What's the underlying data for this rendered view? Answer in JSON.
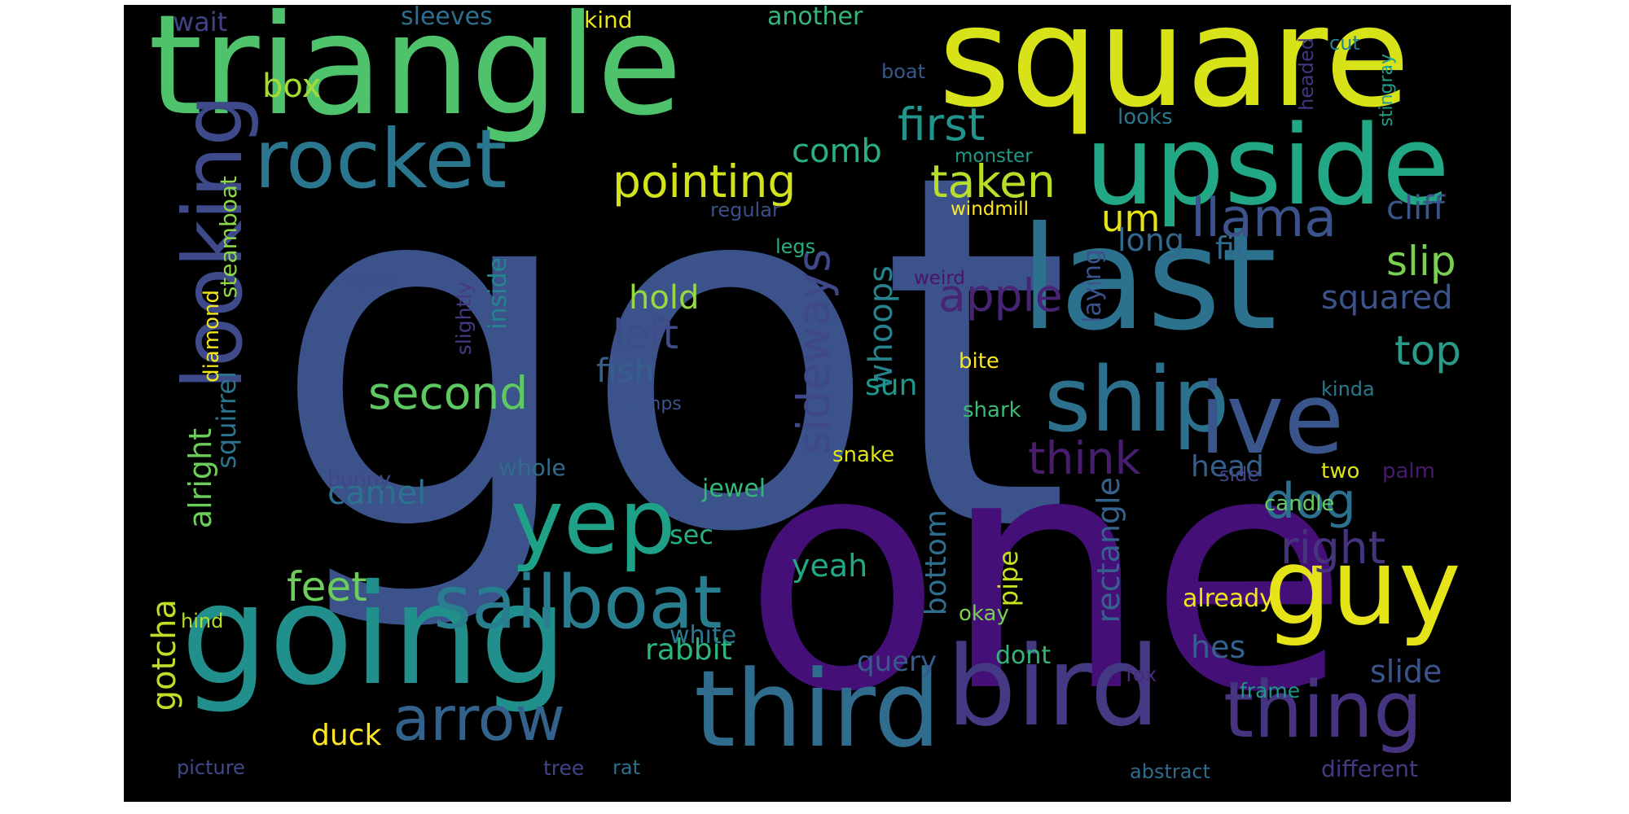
{
  "colors": {
    "background": "#000000",
    "page": "#ffffff",
    "palette": [
      "#440154",
      "#482878",
      "#3e4a89",
      "#31688e",
      "#26828e",
      "#1f9e89",
      "#35b779",
      "#6ece58",
      "#b5de2b",
      "#fde725"
    ]
  },
  "words": [
    {
      "id": "got",
      "text": "got",
      "color": "#3b528b"
    },
    {
      "id": "one",
      "text": "one",
      "color": "#440f76"
    },
    {
      "id": "triangle",
      "text": "triangle",
      "color": "#4ec36b"
    },
    {
      "id": "square",
      "text": "square",
      "color": "#d8e219"
    },
    {
      "id": "last",
      "text": "last",
      "color": "#2c728e"
    },
    {
      "id": "going",
      "text": "going",
      "color": "#21908d"
    },
    {
      "id": "third",
      "text": "third",
      "color": "#2f6c8e"
    },
    {
      "id": "bird",
      "text": "bird",
      "color": "#443a83"
    },
    {
      "id": "upside",
      "text": "upside",
      "color": "#22a884"
    },
    {
      "id": "looking",
      "text": "looking",
      "color": "#3e4a89"
    },
    {
      "id": "rocket",
      "text": "rocket",
      "color": "#2a768e"
    },
    {
      "id": "guy",
      "text": "guy",
      "color": "#e5e419"
    },
    {
      "id": "ship",
      "text": "ship",
      "color": "#2d708e"
    },
    {
      "id": "ive",
      "text": "ive",
      "color": "#3a548c"
    },
    {
      "id": "yep",
      "text": "yep",
      "color": "#1fa187"
    },
    {
      "id": "sailboat",
      "text": "sailboat",
      "color": "#287d8e"
    },
    {
      "id": "thing",
      "text": "thing",
      "color": "#463480"
    },
    {
      "id": "arrow",
      "text": "arrow",
      "color": "#33638d"
    },
    {
      "id": "llama",
      "text": "llama",
      "color": "#3b528b"
    },
    {
      "id": "pointing",
      "text": "pointing",
      "color": "#d2e21b"
    },
    {
      "id": "taken",
      "text": "taken",
      "color": "#b8de29"
    },
    {
      "id": "first",
      "text": "first",
      "color": "#1f958b"
    },
    {
      "id": "apple",
      "text": "apple",
      "color": "#482475"
    },
    {
      "id": "dog",
      "text": "dog",
      "color": "#2d708e"
    },
    {
      "id": "right",
      "text": "right",
      "color": "#46337e"
    },
    {
      "id": "think",
      "text": "think",
      "color": "#481c6e"
    },
    {
      "id": "second",
      "text": "second",
      "color": "#5ec962"
    },
    {
      "id": "feet",
      "text": "feet",
      "color": "#6ccd5a"
    },
    {
      "id": "slip",
      "text": "slip",
      "color": "#7ad151"
    },
    {
      "id": "top",
      "text": "top",
      "color": "#2a9a8a"
    },
    {
      "id": "left",
      "text": "left",
      "color": "#3e4c8a"
    },
    {
      "id": "sideways",
      "text": "sideways",
      "color": "#3f4889"
    },
    {
      "id": "squared",
      "text": "squared",
      "color": "#3b528b"
    },
    {
      "id": "cliff",
      "text": "cliff",
      "color": "#39558c"
    },
    {
      "id": "um",
      "text": "um",
      "color": "#e2e418"
    },
    {
      "id": "box",
      "text": "box",
      "color": "#a5db36"
    },
    {
      "id": "comb",
      "text": "comb",
      "color": "#2ab07f"
    },
    {
      "id": "hold",
      "text": "hold",
      "color": "#95d840"
    },
    {
      "id": "fish",
      "text": "fish",
      "color": "#355f8d"
    },
    {
      "id": "long",
      "text": "long",
      "color": "#31688e"
    },
    {
      "id": "fit",
      "text": "fit",
      "color": "#306a8e"
    },
    {
      "id": "whoops",
      "text": "whoops",
      "color": "#26828e"
    },
    {
      "id": "head",
      "text": "head",
      "color": "#355f8d"
    },
    {
      "id": "camel",
      "text": "camel",
      "color": "#2c728e"
    },
    {
      "id": "gotcha",
      "text": "gotcha",
      "color": "#bddf26"
    },
    {
      "id": "alright",
      "text": "alright",
      "color": "#6ccd5a"
    },
    {
      "id": "rectangle",
      "text": "rectangle",
      "color": "#33638d"
    },
    {
      "id": "bottom",
      "text": "bottom",
      "color": "#2e6e8e"
    },
    {
      "id": "hes",
      "text": "hes",
      "color": "#34618d"
    },
    {
      "id": "slide",
      "text": "slide",
      "color": "#3b528b"
    },
    {
      "id": "rabbit",
      "text": "rabbit",
      "color": "#2fb47c"
    },
    {
      "id": "yeah",
      "text": "yeah",
      "color": "#22a884"
    },
    {
      "id": "sun",
      "text": "sun",
      "color": "#1f988b"
    },
    {
      "id": "query",
      "text": "query",
      "color": "#375b8d"
    },
    {
      "id": "duck",
      "text": "duck",
      "color": "#fde725"
    },
    {
      "id": "squirrel",
      "text": "squirrel",
      "color": "#2c738e"
    },
    {
      "id": "steamboat",
      "text": "steamboat",
      "color": "#8fd744"
    },
    {
      "id": "inside",
      "text": "inside",
      "color": "#25848e"
    },
    {
      "id": "pipe",
      "text": "pipe",
      "color": "#c8e020"
    },
    {
      "id": "laying",
      "text": "laying",
      "color": "#3b528b"
    },
    {
      "id": "sleeves",
      "text": "sleeves",
      "color": "#2e6f8e"
    },
    {
      "id": "another",
      "text": "another",
      "color": "#35b779"
    },
    {
      "id": "wait",
      "text": "wait",
      "color": "#404387"
    },
    {
      "id": "kind",
      "text": "kind",
      "color": "#e7e419"
    },
    {
      "id": "jewel",
      "text": "jewel",
      "color": "#35b779"
    },
    {
      "id": "whole",
      "text": "whole",
      "color": "#2f6c8e"
    },
    {
      "id": "sec",
      "text": "sec",
      "color": "#26ad81"
    },
    {
      "id": "already",
      "text": "already",
      "color": "#f1e51d"
    },
    {
      "id": "white",
      "text": "white",
      "color": "#2a778e"
    },
    {
      "id": "dont",
      "text": "dont",
      "color": "#34b679"
    },
    {
      "id": "diamond",
      "text": "diamond",
      "color": "#f1e51d"
    },
    {
      "id": "slightly",
      "text": "slightly",
      "color": "#443983"
    },
    {
      "id": "bite",
      "text": "bite",
      "color": "#f6e620"
    },
    {
      "id": "shark",
      "text": "shark",
      "color": "#3dbc74"
    },
    {
      "id": "snake",
      "text": "snake",
      "color": "#e2e418"
    },
    {
      "id": "okay",
      "text": "okay",
      "color": "#7ad151"
    },
    {
      "id": "two",
      "text": "two",
      "color": "#dde318"
    },
    {
      "id": "palm",
      "text": "palm",
      "color": "#481a6c"
    },
    {
      "id": "candle",
      "text": "candle",
      "color": "#65cb5e"
    },
    {
      "id": "frame",
      "text": "frame",
      "color": "#1f968b"
    },
    {
      "id": "fox",
      "text": "fox",
      "color": "#472c7a"
    },
    {
      "id": "bunny",
      "text": "bunny",
      "color": "#404688"
    },
    {
      "id": "hind",
      "text": "hind",
      "color": "#b5de2b"
    },
    {
      "id": "picture",
      "text": "picture",
      "color": "#3e4989"
    },
    {
      "id": "tree",
      "text": "tree",
      "color": "#404588"
    },
    {
      "id": "rat",
      "text": "rat",
      "color": "#2e6e8e"
    },
    {
      "id": "abstract",
      "text": "abstract",
      "color": "#2f6b8e"
    },
    {
      "id": "different",
      "text": "different",
      "color": "#443a83"
    },
    {
      "id": "side",
      "text": "side",
      "color": "#414487"
    },
    {
      "id": "kinda",
      "text": "kinda",
      "color": "#2a788e"
    },
    {
      "id": "upset",
      "text": "upset",
      "color": "#3d4e8a"
    },
    {
      "id": "humps",
      "text": "humps",
      "color": "#3b528b"
    },
    {
      "id": "legs",
      "text": "legs",
      "color": "#29af7f"
    },
    {
      "id": "regular",
      "text": "regular",
      "color": "#3c4f8a"
    },
    {
      "id": "windmill",
      "text": "windmill",
      "color": "#fde725"
    },
    {
      "id": "monster",
      "text": "monster",
      "color": "#1f998a"
    },
    {
      "id": "weird",
      "text": "weird",
      "color": "#481467"
    },
    {
      "id": "looks",
      "text": "looks",
      "color": "#2a778e"
    },
    {
      "id": "boat",
      "text": "boat",
      "color": "#38588c"
    },
    {
      "id": "cut",
      "text": "cut",
      "color": "#25838e"
    },
    {
      "id": "headed",
      "text": "headed",
      "color": "#453581"
    },
    {
      "id": "stingray",
      "text": "stingray",
      "color": "#1f9e89"
    }
  ]
}
